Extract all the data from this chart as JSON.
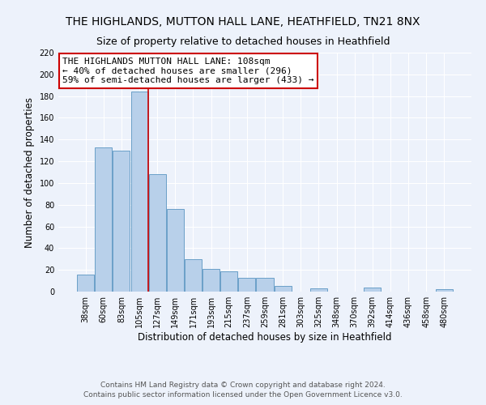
{
  "title": "THE HIGHLANDS, MUTTON HALL LANE, HEATHFIELD, TN21 8NX",
  "subtitle": "Size of property relative to detached houses in Heathfield",
  "xlabel": "Distribution of detached houses by size in Heathfield",
  "ylabel": "Number of detached properties",
  "categories": [
    "38sqm",
    "60sqm",
    "83sqm",
    "105sqm",
    "127sqm",
    "149sqm",
    "171sqm",
    "193sqm",
    "215sqm",
    "237sqm",
    "259sqm",
    "281sqm",
    "303sqm",
    "325sqm",
    "348sqm",
    "370sqm",
    "392sqm",
    "414sqm",
    "436sqm",
    "458sqm",
    "480sqm"
  ],
  "values": [
    16,
    133,
    130,
    184,
    108,
    76,
    30,
    21,
    19,
    13,
    13,
    5,
    0,
    3,
    0,
    0,
    4,
    0,
    0,
    0,
    2
  ],
  "bar_color": "#b8d0ea",
  "bar_edge_color": "#6aa0c8",
  "vline_x_index": 3,
  "vline_color": "#cc0000",
  "annotation_line1": "THE HIGHLANDS MUTTON HALL LANE: 108sqm",
  "annotation_line2": "← 40% of detached houses are smaller (296)",
  "annotation_line3": "59% of semi-detached houses are larger (433) →",
  "annotation_box_color": "#ffffff",
  "annotation_box_edge": "#cc0000",
  "ylim": [
    0,
    220
  ],
  "yticks": [
    0,
    20,
    40,
    60,
    80,
    100,
    120,
    140,
    160,
    180,
    200,
    220
  ],
  "footer1": "Contains HM Land Registry data © Crown copyright and database right 2024.",
  "footer2": "Contains public sector information licensed under the Open Government Licence v3.0.",
  "bg_color": "#edf2fb",
  "plot_bg_color": "#edf2fb",
  "grid_color": "#ffffff",
  "title_fontsize": 10,
  "subtitle_fontsize": 9,
  "label_fontsize": 8.5,
  "tick_fontsize": 7,
  "footer_fontsize": 6.5,
  "annotation_fontsize": 8
}
